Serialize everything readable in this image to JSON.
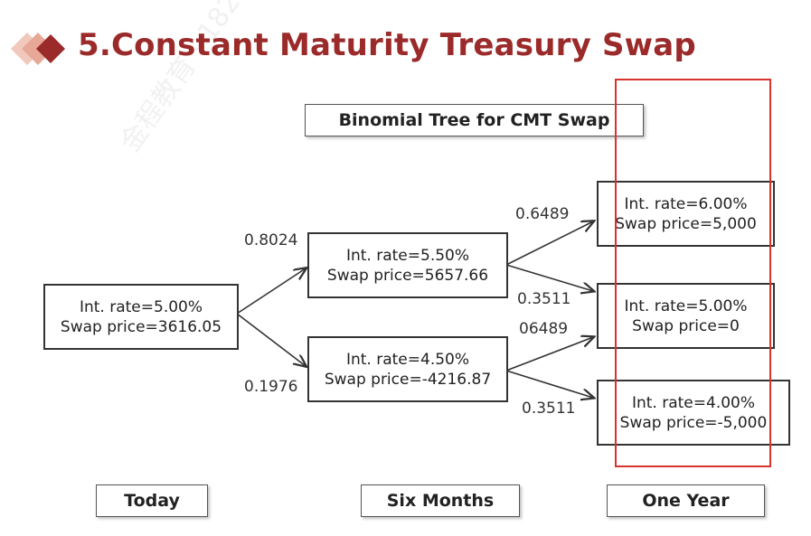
{
  "slide": {
    "title": "5.Constant Maturity Treasury Swap",
    "diagram_title": "Binomial Tree for CMT Swap"
  },
  "nodes": {
    "today": {
      "rate": "Int. rate=5.00%",
      "price": "Swap price=3616.05"
    },
    "six_up": {
      "rate": "Int. rate=5.50%",
      "price": "Swap price=5657.66"
    },
    "six_down": {
      "rate": "Int. rate=4.50%",
      "price": "Swap price=-4216.87"
    },
    "year_up": {
      "rate": "Int. rate=6.00%",
      "price": "Swap price=5,000"
    },
    "year_mid": {
      "rate": "Int. rate=5.00%",
      "price": "Swap price=0"
    },
    "year_down": {
      "rate": "Int. rate=4.00%",
      "price": "Swap price=-5,000"
    }
  },
  "probabilities": {
    "today_up": "0.8024",
    "today_down": "0.1976",
    "six_up_up": "0.6489",
    "six_up_down": "0.3511",
    "six_down_up": "06489",
    "six_down_down": "0.3511"
  },
  "time_labels": {
    "today": "Today",
    "six_months": "Six Months",
    "one_year": "One Year"
  },
  "colors": {
    "title": "#9b2a2a",
    "highlight": "#d9332b",
    "diamond_dark": "#9b2a2a",
    "diamond_light": "#e8a898"
  }
}
